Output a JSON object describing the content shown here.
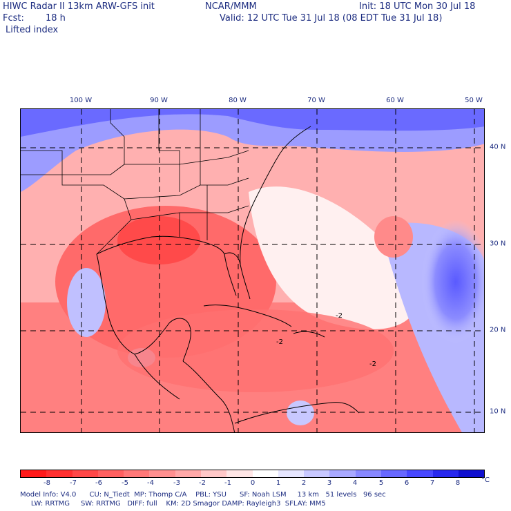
{
  "header": {
    "title_left": "HIWC Radar II 13km ARW-GFS init",
    "center": "NCAR/MMM",
    "init": "Init: 18 UTC Mon 30 Jul 18",
    "fcst_label": "Fcst:",
    "fcst_value": "18 h",
    "valid": "Valid: 12 UTC Tue 31 Jul 18 (08 EDT Tue 31 Jul 18)",
    "field": "Lifted index"
  },
  "map": {
    "lon_labels": [
      "100 W",
      "90 W",
      "80 W",
      "70 W",
      "60 W",
      "50 W"
    ],
    "lat_labels": [
      "40 N",
      "30 N",
      "20 N",
      "10 N"
    ],
    "contour_labels": [
      "-2",
      "-2",
      "-2"
    ]
  },
  "colorbar": {
    "labels": [
      "-8",
      "-7",
      "-6",
      "-5",
      "-4",
      "-3",
      "-2",
      "-1",
      "0",
      "1",
      "2",
      "3",
      "4",
      "5",
      "6",
      "7",
      "8"
    ],
    "unit": "°C",
    "colors": [
      "#ff1a1a",
      "#ff3030",
      "#ff4848",
      "#ff6060",
      "#ff7878",
      "#ff9090",
      "#ffa8a8",
      "#ffc8c8",
      "#ffe6e6",
      "#ffffff",
      "#e6e6ff",
      "#c8c8ff",
      "#a8a8ff",
      "#8888ff",
      "#6868ff",
      "#4848ff",
      "#2828ee",
      "#1010d0"
    ]
  },
  "footer": {
    "line1": "Model Info: V4.0      CU: N_Tiedt  MP: Thomp C/A    PBL: YSU      SF: Noah LSM     13 km   51 levels   96 sec",
    "line2": "     LW: RRTMG     SW: RRTMG   DIFF: full    KM: 2D Smagor DAMP: Rayleigh3  SFLAY: MM5"
  }
}
